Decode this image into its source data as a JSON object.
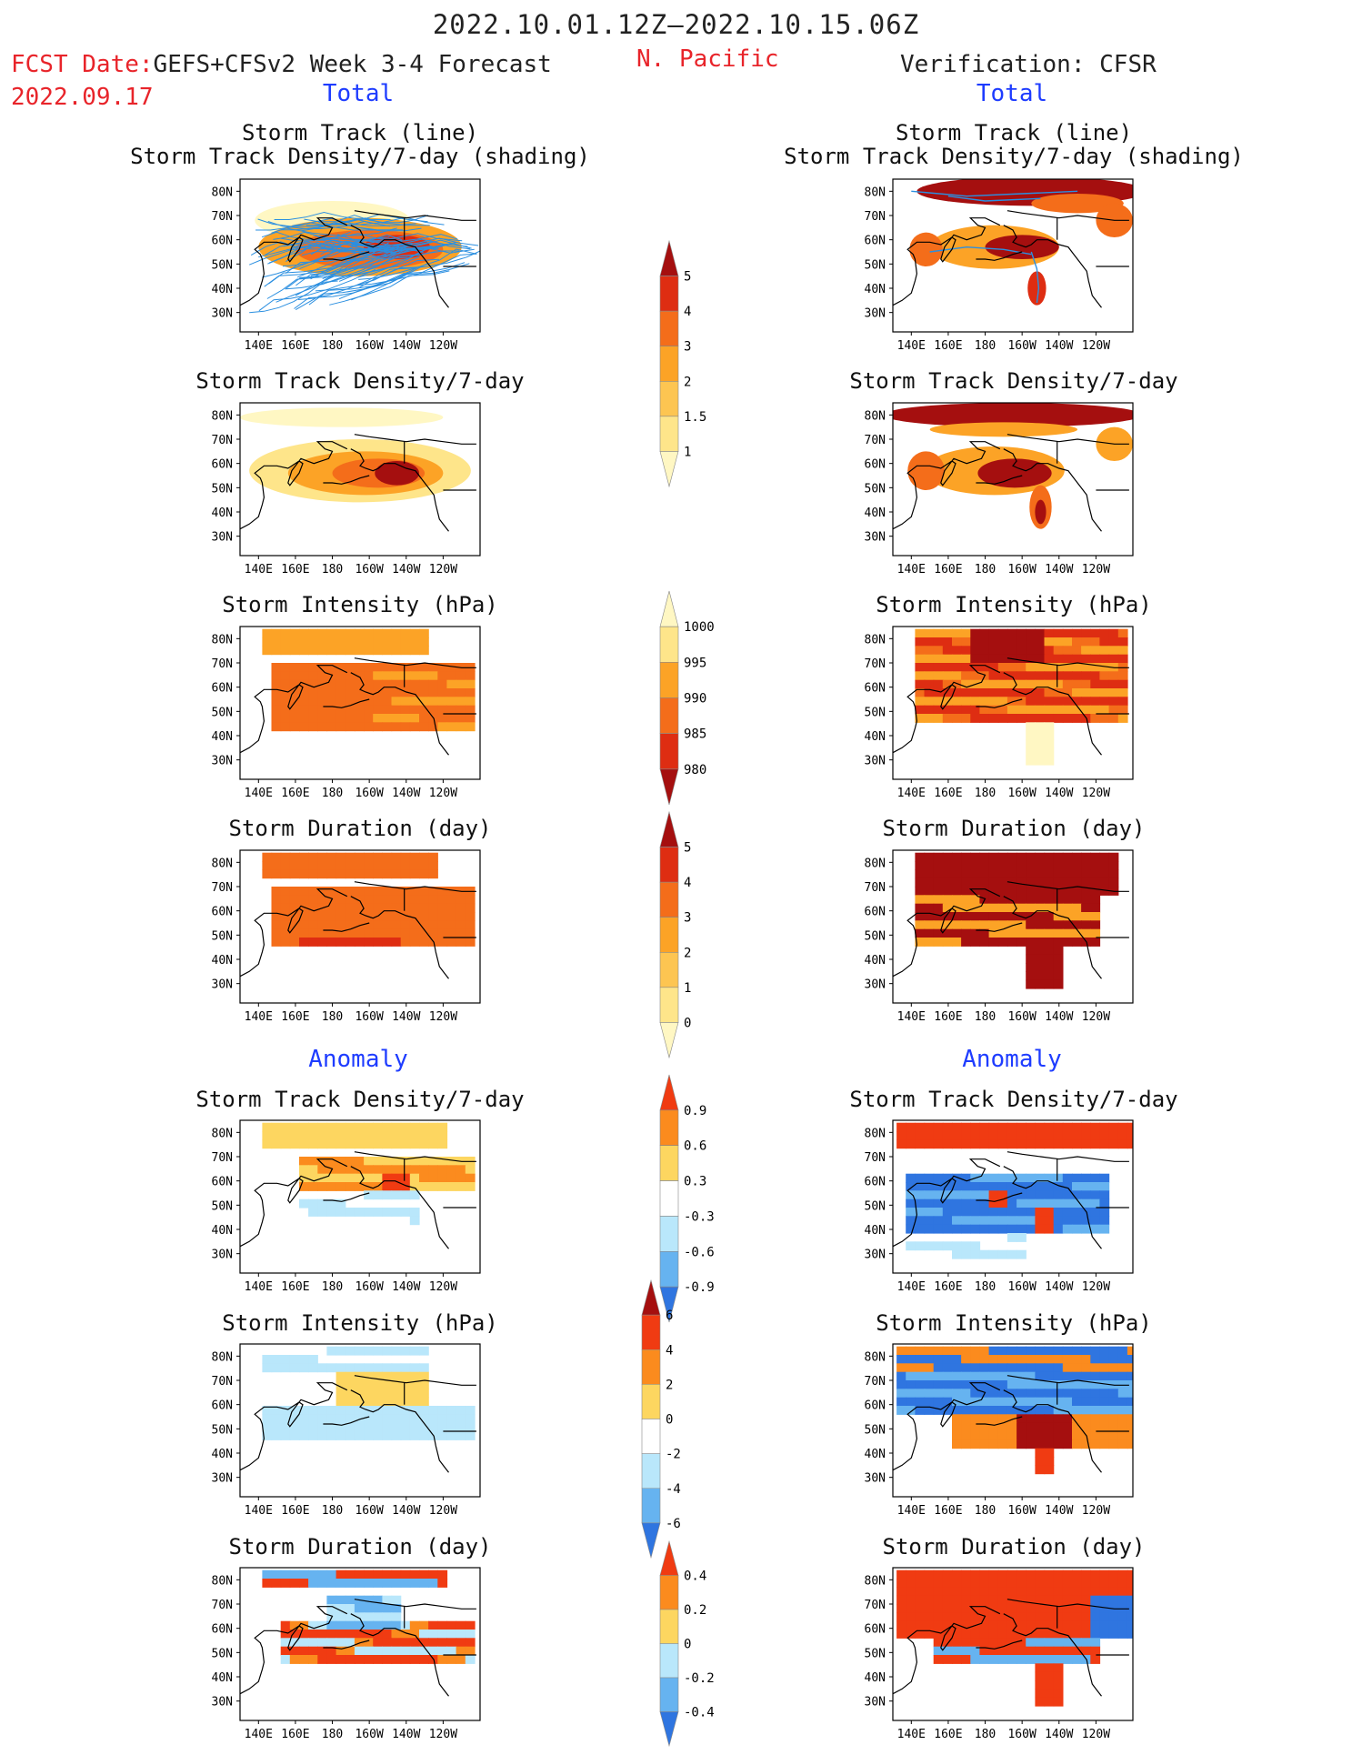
{
  "header": {
    "time_range": "2022.10.01.12Z–2022.10.15.06Z",
    "fcst_label": "FCST Date:",
    "forecast_name": "GEFS+CFSv2 Week 3-4 Forecast",
    "fcst_date": "2022.09.17",
    "region": "N. Pacific",
    "verification": "Verification: CFSR"
  },
  "sections": {
    "total": "Total",
    "anomaly": "Anomaly"
  },
  "panel_titles": {
    "track_line": "Storm Track (line)",
    "track_shading": "Storm Track Density/7-day (shading)",
    "density": "Storm Track Density/7-day",
    "intensity": "Storm Intensity (hPa)",
    "duration": "Storm Duration (day)"
  },
  "axes": {
    "lon_ticks": [
      "140E",
      "160E",
      "180",
      "160W",
      "140W",
      "120W"
    ],
    "lat_ticks": [
      "80N",
      "70N",
      "60N",
      "50N",
      "40N",
      "30N"
    ]
  },
  "colorbars": [
    {
      "id": "cb-density",
      "labels": [
        "5",
        "4",
        "3",
        "2",
        "1.5",
        "1"
      ],
      "colors": [
        "#a50f0f",
        "#de2d12",
        "#f46d1a",
        "#fca326",
        "#fdc551",
        "#fee58a",
        "#fff7c3"
      ]
    },
    {
      "id": "cb-intensity",
      "labels": [
        "1000",
        "995",
        "990",
        "985",
        "980"
      ],
      "colors": [
        "#fff7c3",
        "#fee58a",
        "#fca326",
        "#f46d1a",
        "#de2d12",
        "#a50f0f"
      ]
    },
    {
      "id": "cb-duration",
      "labels": [
        "5",
        "4",
        "3",
        "2",
        "1",
        "0"
      ],
      "colors": [
        "#a50f0f",
        "#de2d12",
        "#f46d1a",
        "#fca326",
        "#fdc551",
        "#fee58a",
        "#fff7c3"
      ]
    },
    {
      "id": "cb-anom-density",
      "labels": [
        "0.9",
        "0.6",
        "0.3",
        "-0.3",
        "-0.6",
        "-0.9"
      ],
      "colors": [
        "#f03b12",
        "#fb8b1e",
        "#fdd660",
        "#ffffff",
        "#b9e7fb",
        "#66b3f0",
        "#2f75e0"
      ]
    },
    {
      "id": "cb-anom-intensity",
      "labels": [
        "6",
        "4",
        "2",
        "0",
        "-2",
        "-4",
        "-6"
      ],
      "colors": [
        "#a50f0f",
        "#f03b12",
        "#fb8b1e",
        "#fdd660",
        "#ffffff",
        "#b9e7fb",
        "#66b3f0",
        "#2f75e0"
      ]
    },
    {
      "id": "cb-anom-duration",
      "labels": [
        "0.4",
        "0.2",
        "0",
        "-0.2",
        "-0.4"
      ],
      "colors": [
        "#f03b12",
        "#fb8b1e",
        "#fdd660",
        "#b9e7fb",
        "#66b3f0",
        "#2f75e0"
      ]
    }
  ],
  "colors": {
    "header_red": "#e8242a",
    "section_blue": "#1e3cff",
    "track_line": "#2b8fe0"
  }
}
